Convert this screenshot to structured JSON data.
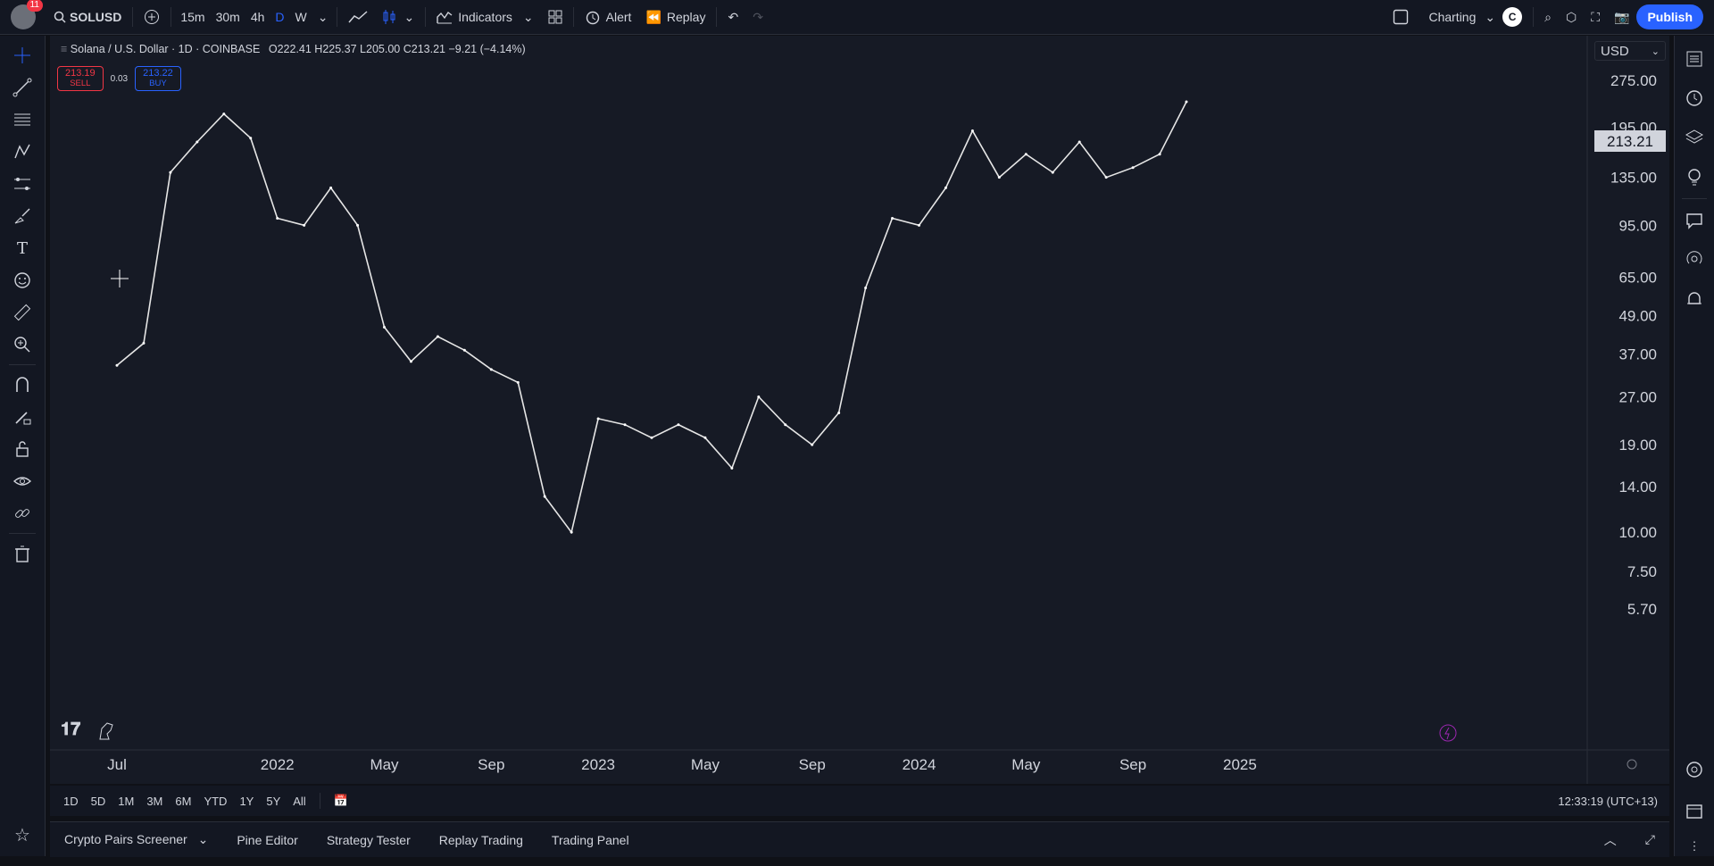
{
  "topbar": {
    "notif_count": "11",
    "symbol": "SOLUSD",
    "timeframes": [
      "15m",
      "30m",
      "4h",
      "D",
      "W"
    ],
    "active_timeframe": "D",
    "indicators_label": "Indicators",
    "alert_label": "Alert",
    "replay_label": "Replay",
    "layout_label": "Charting",
    "layout_initial": "C",
    "publish_label": "Publish"
  },
  "legend": {
    "title": "Solana / U.S. Dollar · 1D · COINBASE",
    "open": "O222.41",
    "high": "H225.37",
    "low": "L205.00",
    "close": "C213.21",
    "change": "−9.21 (−4.14%)",
    "sell_price": "213.19",
    "sell_label": "SELL",
    "spread": "0.03",
    "buy_price": "213.22",
    "buy_label": "BUY"
  },
  "currency": "USD",
  "price_tag": "213.21",
  "bottom": {
    "ranges": [
      "1D",
      "5D",
      "1M",
      "3M",
      "6M",
      "YTD",
      "1Y",
      "5Y",
      "All"
    ],
    "clock": "12:33:19 (UTC+13)",
    "tabs": [
      "Crypto Pairs Screener",
      "Pine Editor",
      "Strategy Tester",
      "Replay Trading",
      "Trading Panel"
    ]
  },
  "colors": {
    "accent": "#2962ff",
    "sell": "#f23645",
    "buy": "#2962ff",
    "background": "#161a25"
  },
  "chart_data": {
    "type": "line",
    "title": "Solana / U.S. Dollar · 1D · COINBASE",
    "scale": "log",
    "y_ticks": [
      "275.00",
      "195.00",
      "135.00",
      "95.00",
      "65.00",
      "49.00",
      "37.00",
      "27.00",
      "19.00",
      "14.00",
      "10.00",
      "7.50",
      "5.70"
    ],
    "x_ticks": [
      "Jul",
      "2022",
      "May",
      "Sep",
      "2023",
      "May",
      "Sep",
      "2024",
      "May",
      "Sep",
      "2025"
    ],
    "x": [
      "2021-07",
      "2021-08",
      "2021-09",
      "2021-10",
      "2021-11",
      "2021-12",
      "2022-01",
      "2022-02",
      "2022-03",
      "2022-04",
      "2022-05",
      "2022-06",
      "2022-07",
      "2022-08",
      "2022-09",
      "2022-10",
      "2022-11",
      "2022-12",
      "2023-01",
      "2023-02",
      "2023-03",
      "2023-04",
      "2023-05",
      "2023-06",
      "2023-07",
      "2023-08",
      "2023-09",
      "2023-10",
      "2023-11",
      "2023-12",
      "2024-01",
      "2024-02",
      "2024-03",
      "2024-04",
      "2024-05",
      "2024-06",
      "2024-07",
      "2024-08",
      "2024-09",
      "2024-10",
      "2024-11"
    ],
    "series": [
      {
        "values": [
          34,
          40,
          140,
          175,
          215,
          180,
          100,
          95,
          125,
          95,
          45,
          35,
          42,
          38,
          33,
          30,
          13,
          10,
          23,
          22,
          20,
          22,
          20,
          16,
          27,
          22,
          19,
          24,
          60,
          100,
          95,
          125,
          190,
          135,
          160,
          140,
          175,
          135,
          145,
          160,
          235
        ]
      }
    ]
  }
}
